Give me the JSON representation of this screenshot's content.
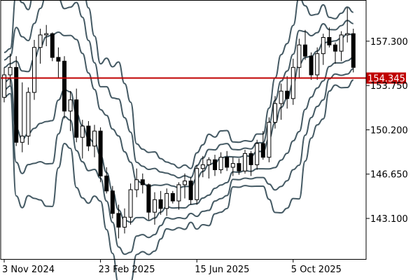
{
  "chart_data": {
    "type": "candlestick",
    "grid": false,
    "colors": {
      "frame": "#000000",
      "band": "#455a64",
      "candle": "#000000",
      "price_line": "#c00000",
      "price_tag_bg": "#c00000",
      "price_tag_text": "#ffffff",
      "background": "#ffffff"
    },
    "y_axis": {
      "position": "right",
      "ticks": [
        157.3,
        153.75,
        150.2,
        146.65,
        143.1
      ],
      "tick_labels": [
        "157.300",
        "153.750",
        "150.200",
        "146.650",
        "143.100"
      ],
      "range": [
        139.85,
        160.6
      ]
    },
    "x_axis": {
      "tick_labels": [
        "3 Nov 2024",
        "23 Feb 2025",
        "15 Jun 2025",
        "5 Oct 2025"
      ],
      "tick_index": [
        0,
        16,
        32,
        48
      ]
    },
    "current_price": {
      "value": 154.345,
      "label": "154.345"
    },
    "candles": [
      [
        152.8,
        155.2,
        152.4,
        154.6
      ],
      [
        154.6,
        156.3,
        153.7,
        155.2
      ],
      [
        155.2,
        156.1,
        148.9,
        149.2
      ],
      [
        149.2,
        154.0,
        148.4,
        149.7
      ],
      [
        149.7,
        153.6,
        149.0,
        153.2
      ],
      [
        153.2,
        157.4,
        152.6,
        156.8
      ],
      [
        156.8,
        158.3,
        155.5,
        157.8
      ],
      [
        157.8,
        158.6,
        156.9,
        157.9
      ],
      [
        157.9,
        158.0,
        155.7,
        156.0
      ],
      [
        156.0,
        156.8,
        154.3,
        155.7
      ],
      [
        155.7,
        156.1,
        151.1,
        151.7
      ],
      [
        151.7,
        153.3,
        150.1,
        152.6
      ],
      [
        152.6,
        153.5,
        149.2,
        149.6
      ],
      [
        149.6,
        151.0,
        147.9,
        150.5
      ],
      [
        150.5,
        150.9,
        148.5,
        148.9
      ],
      [
        148.9,
        150.6,
        148.0,
        150.1
      ],
      [
        150.1,
        150.4,
        146.0,
        146.5
      ],
      [
        146.5,
        147.2,
        145.1,
        145.3
      ],
      [
        145.3,
        145.7,
        143.1,
        143.5
      ],
      [
        143.5,
        144.2,
        141.5,
        142.4
      ],
      [
        142.4,
        143.9,
        141.9,
        143.2
      ],
      [
        143.2,
        145.9,
        142.6,
        145.4
      ],
      [
        145.4,
        147.1,
        144.8,
        146.2
      ],
      [
        146.2,
        146.7,
        145.1,
        145.8
      ],
      [
        145.8,
        145.9,
        143.0,
        143.6
      ],
      [
        143.6,
        145.2,
        142.6,
        144.6
      ],
      [
        144.6,
        145.3,
        143.4,
        143.9
      ],
      [
        143.9,
        145.5,
        143.3,
        145.1
      ],
      [
        145.1,
        145.3,
        144.3,
        144.5
      ],
      [
        144.5,
        146.0,
        143.8,
        145.8
      ],
      [
        145.8,
        146.7,
        144.7,
        146.1
      ],
      [
        146.1,
        146.4,
        144.2,
        144.6
      ],
      [
        144.6,
        147.4,
        144.2,
        147.1
      ],
      [
        147.1,
        148.1,
        146.4,
        147.4
      ],
      [
        147.4,
        148.0,
        146.3,
        147.8
      ],
      [
        147.8,
        148.2,
        146.5,
        147.0
      ],
      [
        147.0,
        148.4,
        146.7,
        148.0
      ],
      [
        148.0,
        148.5,
        146.9,
        147.2
      ],
      [
        147.2,
        148.0,
        146.5,
        147.5
      ],
      [
        147.5,
        147.9,
        146.6,
        146.9
      ],
      [
        146.9,
        148.6,
        146.7,
        148.3
      ],
      [
        148.3,
        148.5,
        146.5,
        147.4
      ],
      [
        147.4,
        149.4,
        147.0,
        149.1
      ],
      [
        149.1,
        150.1,
        147.8,
        148.0
      ],
      [
        148.0,
        151.2,
        147.6,
        150.8
      ],
      [
        150.8,
        152.9,
        150.3,
        152.3
      ],
      [
        152.3,
        153.9,
        151.0,
        153.3
      ],
      [
        153.3,
        154.5,
        151.9,
        152.7
      ],
      [
        152.7,
        155.9,
        152.2,
        155.2
      ],
      [
        155.2,
        157.5,
        154.4,
        157.0
      ],
      [
        157.0,
        158.2,
        155.8,
        156.1
      ],
      [
        156.1,
        156.4,
        154.2,
        154.6
      ],
      [
        154.6,
        156.8,
        154.2,
        156.3
      ],
      [
        156.3,
        157.9,
        155.4,
        157.6
      ],
      [
        157.6,
        158.4,
        156.8,
        157.0
      ],
      [
        157.0,
        157.2,
        155.5,
        156.5
      ],
      [
        156.5,
        158.1,
        155.7,
        157.8
      ],
      [
        157.8,
        160.0,
        157.2,
        157.9
      ],
      [
        157.9,
        158.3,
        154.8,
        155.2
      ]
    ]
  }
}
